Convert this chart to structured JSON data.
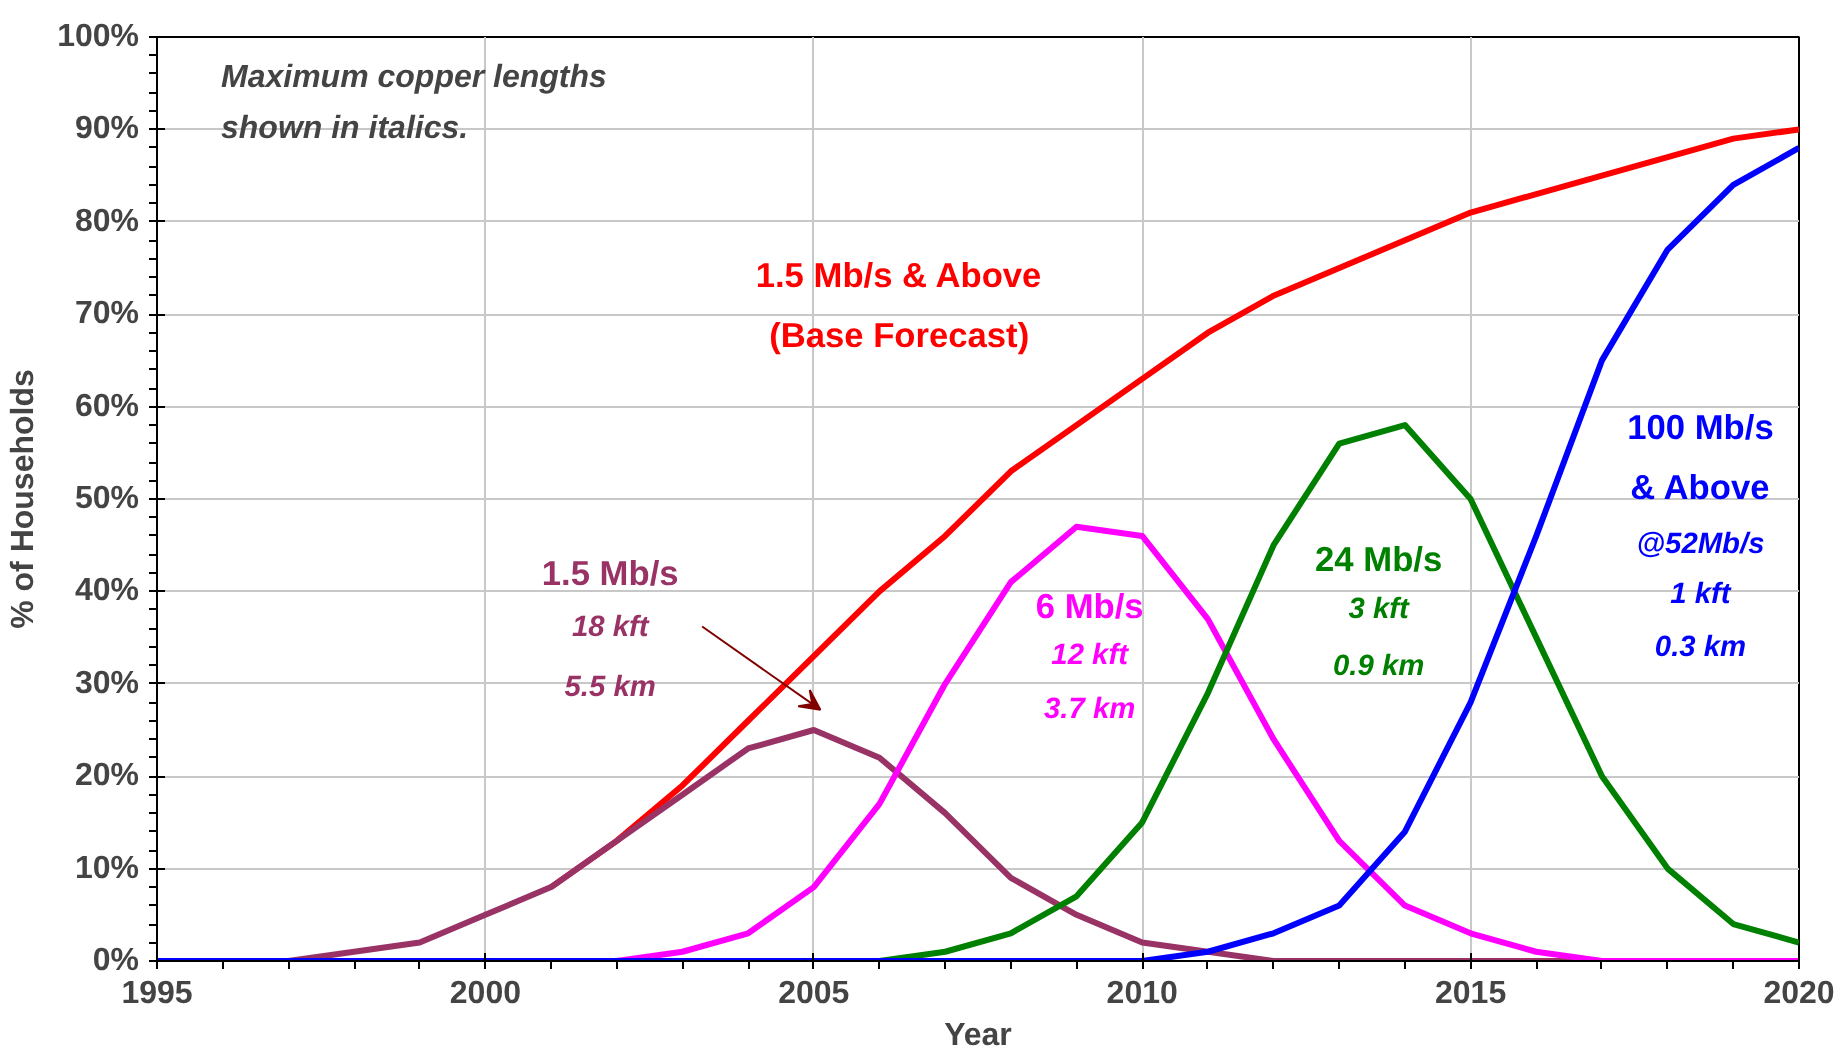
{
  "chart_data": {
    "type": "line",
    "xlabel": "Year",
    "ylabel": "% of Households",
    "x": [
      1995,
      1996,
      1997,
      1998,
      1999,
      2000,
      2001,
      2002,
      2003,
      2004,
      2005,
      2006,
      2007,
      2008,
      2009,
      2010,
      2011,
      2012,
      2013,
      2014,
      2015,
      2016,
      2017,
      2018,
      2019,
      2020
    ],
    "series": [
      {
        "name": "1.5 Mb/s & Above\n(Base Forecast)",
        "color": "#ff0000",
        "values": [
          null,
          null,
          null,
          null,
          null,
          null,
          8,
          13,
          19,
          26,
          33,
          40,
          46,
          53,
          58,
          63,
          68,
          72,
          75,
          78,
          81,
          83,
          85,
          87,
          89,
          90
        ]
      },
      {
        "name": "1.5 Mb/s",
        "color": "#993366",
        "values": [
          null,
          null,
          0,
          1,
          2,
          5,
          8,
          13,
          18,
          23,
          25,
          22,
          16,
          9,
          5,
          2,
          1,
          0,
          0,
          0,
          0,
          0,
          0,
          null,
          null,
          null
        ]
      },
      {
        "name": "6 Mb/s",
        "color": "#ff00ff",
        "values": [
          null,
          null,
          null,
          null,
          null,
          null,
          0,
          0,
          1,
          3,
          8,
          17,
          30,
          41,
          47,
          46,
          37,
          24,
          13,
          6,
          3,
          1,
          0,
          0,
          0,
          0
        ]
      },
      {
        "name": "24 Mb/s",
        "color": "#008000",
        "values": [
          null,
          null,
          null,
          null,
          null,
          null,
          null,
          null,
          null,
          null,
          null,
          0,
          1,
          3,
          7,
          15,
          29,
          45,
          56,
          58,
          50,
          35,
          20,
          10,
          4,
          2
        ]
      },
      {
        "name": "100 Mb/s\n& Above",
        "color": "#0000ff",
        "values": [
          0,
          0,
          0,
          0,
          0,
          0,
          0,
          0,
          0,
          0,
          0,
          0,
          0,
          0,
          0,
          0,
          1,
          3,
          6,
          14,
          28,
          46,
          65,
          77,
          84,
          88
        ]
      }
    ],
    "xlim": [
      1995,
      2020
    ],
    "xticks": [
      1995,
      2000,
      2005,
      2010,
      2015,
      2020
    ],
    "ylim": [
      0,
      100
    ],
    "yticks": [
      {
        "value": 0,
        "label": "0%"
      },
      {
        "value": 10,
        "label": "10%"
      },
      {
        "value": 20,
        "label": "20%"
      },
      {
        "value": 30,
        "label": "30%"
      },
      {
        "value": 40,
        "label": "40%"
      },
      {
        "value": 50,
        "label": "50%"
      },
      {
        "value": 60,
        "label": "60%"
      },
      {
        "value": 70,
        "label": "70%"
      },
      {
        "value": 80,
        "label": "80%"
      },
      {
        "value": 90,
        "label": "90%"
      },
      {
        "value": 100,
        "label": "100%"
      }
    ],
    "annotations": [
      "Maximum copper lengths\nshown in italics.",
      "18 kft",
      "5.5 km",
      "12 kft",
      "3.7 km",
      "3 kft",
      "0.9 km",
      "@52Mb/s",
      "1 kft",
      "0.3 km"
    ],
    "grid": true,
    "legend": false,
    "marker": "none",
    "line_style": "solid"
  }
}
